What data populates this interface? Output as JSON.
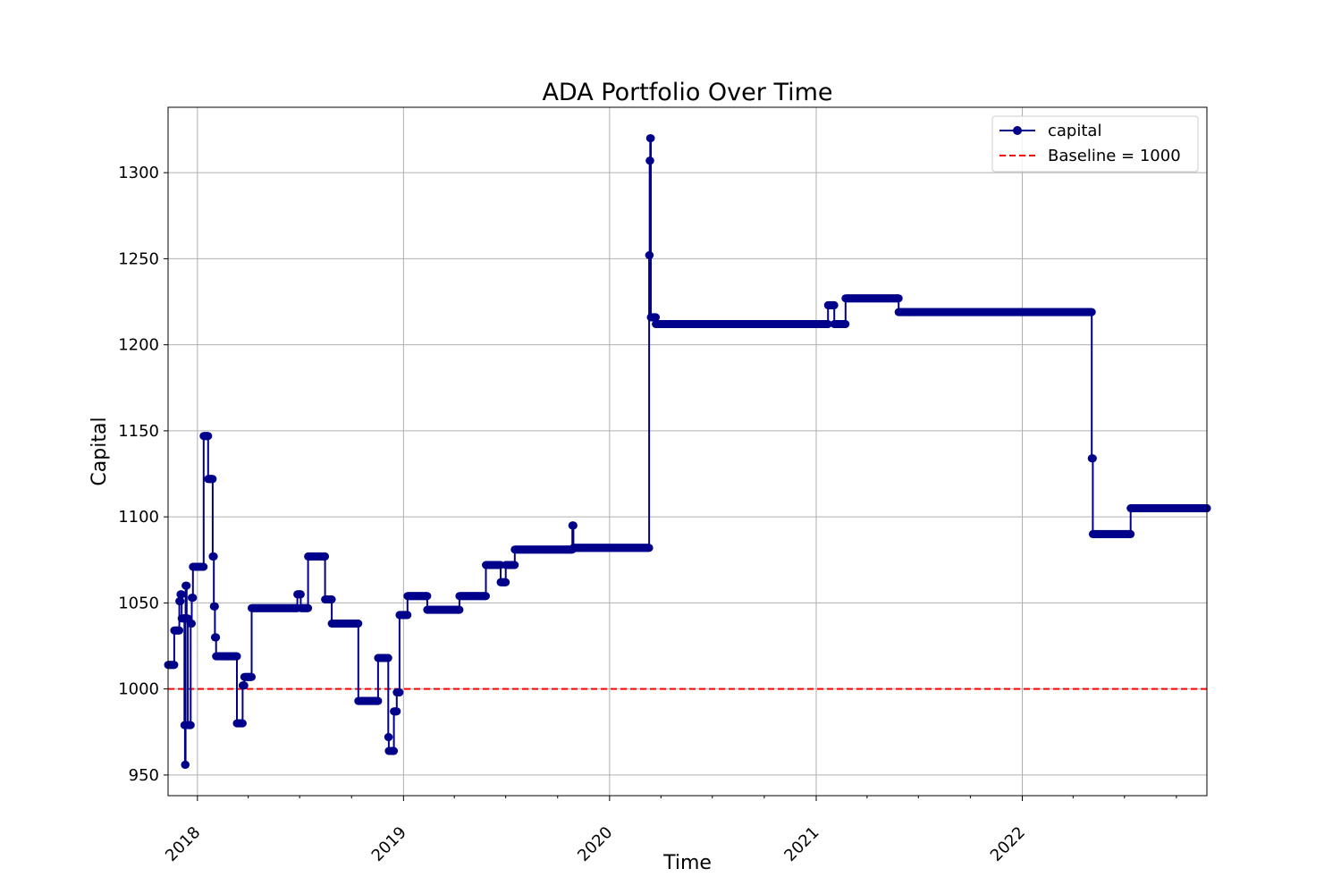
{
  "chart_data": {
    "type": "line",
    "title": "ADA Portfolio Over Time",
    "xlabel": "Time",
    "ylabel": "Capital",
    "xlim": [
      "2017-11-10",
      "2022-11-24"
    ],
    "ylim": [
      938,
      1338
    ],
    "x_ticks": [
      {
        "date": "2018-01-01",
        "label": "2018"
      },
      {
        "date": "2019-01-01",
        "label": "2019"
      },
      {
        "date": "2020-01-01",
        "label": "2020"
      },
      {
        "date": "2021-01-01",
        "label": "2021"
      },
      {
        "date": "2022-01-01",
        "label": "2022"
      }
    ],
    "y_ticks": [
      950,
      1000,
      1050,
      1100,
      1150,
      1200,
      1250,
      1300
    ],
    "grid": true,
    "legend_position": "top-right",
    "colors": {
      "capital": "#00008b",
      "baseline": "#ff0000",
      "grid": "#b0b0b0"
    },
    "series": [
      {
        "name": "capital",
        "style": "step-line-with-markers",
        "color": "#00008b",
        "points": [
          [
            "2017-11-10",
            1014
          ],
          [
            "2017-11-20",
            1014
          ],
          [
            "2017-11-21",
            1034
          ],
          [
            "2017-11-29",
            1034
          ],
          [
            "2017-11-30",
            1051
          ],
          [
            "2017-12-02",
            1055
          ],
          [
            "2017-12-04",
            1041
          ],
          [
            "2017-12-08",
            1041
          ],
          [
            "2017-12-09",
            979
          ],
          [
            "2017-12-10",
            956
          ],
          [
            "2017-12-11",
            1060
          ],
          [
            "2017-12-13",
            1041
          ],
          [
            "2017-12-15",
            979
          ],
          [
            "2017-12-19",
            979
          ],
          [
            "2017-12-20",
            1038
          ],
          [
            "2017-12-22",
            1053
          ],
          [
            "2017-12-24",
            1071
          ],
          [
            "2018-01-10",
            1071
          ],
          [
            "2018-01-12",
            1147
          ],
          [
            "2018-01-18",
            1147
          ],
          [
            "2018-01-20",
            1122
          ],
          [
            "2018-01-27",
            1122
          ],
          [
            "2018-01-28",
            1077
          ],
          [
            "2018-01-30",
            1048
          ],
          [
            "2018-02-01",
            1030
          ],
          [
            "2018-02-03",
            1019
          ],
          [
            "2018-03-10",
            1019
          ],
          [
            "2018-03-12",
            980
          ],
          [
            "2018-03-20",
            980
          ],
          [
            "2018-03-22",
            1002
          ],
          [
            "2018-03-25",
            1007
          ],
          [
            "2018-04-05",
            1007
          ],
          [
            "2018-04-07",
            1047
          ],
          [
            "2018-06-25",
            1047
          ],
          [
            "2018-06-27",
            1055
          ],
          [
            "2018-07-02",
            1055
          ],
          [
            "2018-07-03",
            1047
          ],
          [
            "2018-07-15",
            1047
          ],
          [
            "2018-07-16",
            1077
          ],
          [
            "2018-08-14",
            1077
          ],
          [
            "2018-08-15",
            1052
          ],
          [
            "2018-08-25",
            1052
          ],
          [
            "2018-08-27",
            1038
          ],
          [
            "2018-10-12",
            1038
          ],
          [
            "2018-10-13",
            993
          ],
          [
            "2018-11-15",
            993
          ],
          [
            "2018-11-17",
            1018
          ],
          [
            "2018-12-04",
            1018
          ],
          [
            "2018-12-05",
            972
          ],
          [
            "2018-12-06",
            964
          ],
          [
            "2018-12-14",
            964
          ],
          [
            "2018-12-15",
            987
          ],
          [
            "2018-12-19",
            987
          ],
          [
            "2018-12-20",
            998
          ],
          [
            "2018-12-23",
            998
          ],
          [
            "2018-12-25",
            1043
          ],
          [
            "2019-01-06",
            1043
          ],
          [
            "2019-01-08",
            1054
          ],
          [
            "2019-02-10",
            1054
          ],
          [
            "2019-02-12",
            1046
          ],
          [
            "2019-04-08",
            1046
          ],
          [
            "2019-04-10",
            1054
          ],
          [
            "2019-05-25",
            1054
          ],
          [
            "2019-05-27",
            1072
          ],
          [
            "2019-06-20",
            1072
          ],
          [
            "2019-06-22",
            1062
          ],
          [
            "2019-06-30",
            1062
          ],
          [
            "2019-07-01",
            1072
          ],
          [
            "2019-07-15",
            1072
          ],
          [
            "2019-07-17",
            1081
          ],
          [
            "2019-10-26",
            1081
          ],
          [
            "2019-10-27",
            1095
          ],
          [
            "2019-10-29",
            1082
          ],
          [
            "2020-03-10",
            1082
          ],
          [
            "2020-03-11",
            1252
          ],
          [
            "2020-03-12",
            1307
          ],
          [
            "2020-03-13",
            1320
          ],
          [
            "2020-03-14",
            1216
          ],
          [
            "2020-03-22",
            1216
          ],
          [
            "2020-03-23",
            1212
          ],
          [
            "2021-01-20",
            1212
          ],
          [
            "2021-01-22",
            1223
          ],
          [
            "2021-02-01",
            1223
          ],
          [
            "2021-02-02",
            1212
          ],
          [
            "2021-02-20",
            1212
          ],
          [
            "2021-02-22",
            1227
          ],
          [
            "2021-05-25",
            1227
          ],
          [
            "2021-05-27",
            1219
          ],
          [
            "2022-05-03",
            1219
          ],
          [
            "2022-05-04",
            1134
          ],
          [
            "2022-05-06",
            1090
          ],
          [
            "2022-07-10",
            1090
          ],
          [
            "2022-07-12",
            1105
          ],
          [
            "2022-11-24",
            1105
          ]
        ]
      },
      {
        "name": "Baseline = 1000",
        "style": "dashed-horizontal",
        "color": "#ff0000",
        "value": 1000
      }
    ]
  }
}
